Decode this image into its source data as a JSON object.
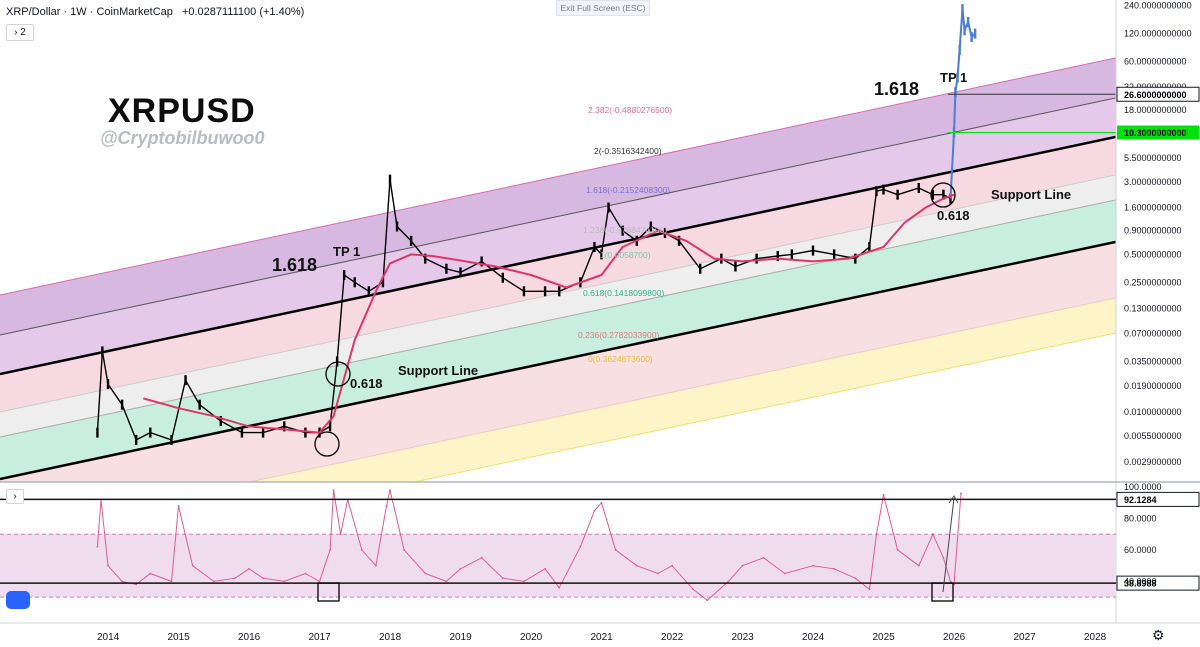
{
  "header": {
    "symbol": "XRP/Dollar · 1W · CoinMarketCap",
    "change": "+0.0287111100 (+1.40%)",
    "collapse_label": "› 2",
    "rsi_toggle": "›",
    "exit_fullscreen": "Exit Full Screen (ESC)"
  },
  "watermark": {
    "title": "XRPUSD",
    "handle": "@Cryptobilbuwoo0"
  },
  "colors": {
    "candle": "#000000",
    "ma": "#e0356b",
    "rsi": "#e05a95",
    "recent_candle": "#4a7fd4",
    "green_tag": "#00e00a",
    "price_tag": "#ffffff"
  },
  "chart_data": [
    {
      "type": "line",
      "pane": "price",
      "scale": "log",
      "x_labels": [
        "2014",
        "2015",
        "2016",
        "2017",
        "2018",
        "2019",
        "2020",
        "2021",
        "2022",
        "2023",
        "2024",
        "2025",
        "2026",
        "2027",
        "2028"
      ],
      "y_ticks": [
        "240.0000000000",
        "120.0000000000",
        "60.0000000000",
        "32.0000000000",
        "18.0000000000",
        "5.5000000000",
        "3.0000000000",
        "1.6000000000",
        "0.9000000000",
        "0.5000000000",
        "0.2500000000",
        "0.1300000000",
        "0.0700000000",
        "0.0350000000",
        "0.0190000000",
        "0.0100000000",
        "0.0055000000",
        "0.0029000000"
      ],
      "ylim": [
        0.0022,
        250
      ],
      "price_tags": [
        {
          "label": "26.6000000000",
          "value": 26.6,
          "style": "white"
        },
        {
          "label": "10.3000000000",
          "value": 10.3,
          "style": "green"
        }
      ],
      "fib_labels": [
        {
          "text": "2.382(-0.4880276500)",
          "color": "#e06f8f"
        },
        {
          "text": "2(-0.3516342400)",
          "color": "#333333"
        },
        {
          "text": "1.618(-0.2152408300)",
          "color": "#7a6fd0"
        },
        {
          "text": "1.236(-0.0788474100)",
          "color": "#bbbbbb"
        },
        {
          "text": "1(0.0058700)",
          "color": "#7dc9a8"
        },
        {
          "text": "0.618(0.1418099800)",
          "color": "#2bb58a"
        },
        {
          "text": "0.236(0.2782033900)",
          "color": "#e07a7a"
        },
        {
          "text": "0(0.3624673600)",
          "color": "#e0c040"
        }
      ],
      "annotations": [
        {
          "text": "1.618"
        },
        {
          "text": "TP 1"
        },
        {
          "text": "Support Line"
        },
        {
          "text": "0.618"
        },
        {
          "text": "1.618"
        },
        {
          "text": "TP 1"
        },
        {
          "text": "Support Line"
        },
        {
          "text": "0.618"
        }
      ],
      "price_series": {
        "name": "",
        "x": [
          2013.85,
          2013.92,
          2014.0,
          2014.2,
          2014.4,
          2014.6,
          2014.9,
          2015.1,
          2015.3,
          2015.6,
          2015.9,
          2016.2,
          2016.5,
          2016.8,
          2017.0,
          2017.15,
          2017.25,
          2017.35,
          2017.5,
          2017.7,
          2017.9,
          2018.0,
          2018.1,
          2018.3,
          2018.5,
          2018.8,
          2019.0,
          2019.3,
          2019.6,
          2019.9,
          2020.2,
          2020.4,
          2020.7,
          2020.9,
          2021.0,
          2021.1,
          2021.3,
          2021.5,
          2021.7,
          2021.9,
          2022.1,
          2022.4,
          2022.7,
          2022.9,
          2023.2,
          2023.5,
          2023.7,
          2024.0,
          2024.3,
          2024.6,
          2024.8,
          2024.9,
          2025.0,
          2025.2,
          2025.5,
          2025.7,
          2025.85,
          2025.95,
          2026.0,
          2026.02,
          2026.05,
          2026.08,
          2026.12,
          2026.15,
          2026.2,
          2026.25,
          2026.3
        ],
        "y": [
          0.006,
          0.045,
          0.02,
          0.012,
          0.005,
          0.006,
          0.005,
          0.022,
          0.012,
          0.008,
          0.006,
          0.006,
          0.007,
          0.006,
          0.006,
          0.007,
          0.035,
          0.3,
          0.25,
          0.2,
          0.25,
          3.2,
          1.0,
          0.7,
          0.45,
          0.35,
          0.32,
          0.42,
          0.28,
          0.2,
          0.2,
          0.2,
          0.25,
          0.6,
          0.5,
          1.6,
          0.9,
          0.7,
          1.0,
          0.85,
          0.7,
          0.35,
          0.45,
          0.37,
          0.45,
          0.48,
          0.5,
          0.55,
          0.5,
          0.45,
          0.6,
          2.4,
          2.5,
          2.2,
          2.6,
          2.2,
          2.2,
          2.0,
          10.3,
          28,
          40,
          80,
          220,
          130,
          160,
          110,
          120
        ]
      },
      "ma_series": {
        "name": "",
        "x": [
          2014.5,
          2015.0,
          2015.5,
          2016.0,
          2016.5,
          2017.0,
          2017.2,
          2017.5,
          2017.8,
          2018.0,
          2018.3,
          2018.6,
          2019.0,
          2019.5,
          2020.0,
          2020.5,
          2021.0,
          2021.3,
          2021.8,
          2022.2,
          2022.6,
          2023.0,
          2023.5,
          2024.0,
          2024.5,
          2025.0,
          2025.3,
          2025.6,
          2025.85,
          2026.0
        ],
        "y": [
          0.014,
          0.011,
          0.009,
          0.007,
          0.0065,
          0.006,
          0.009,
          0.06,
          0.2,
          0.4,
          0.5,
          0.48,
          0.43,
          0.37,
          0.3,
          0.22,
          0.3,
          0.6,
          0.9,
          0.7,
          0.45,
          0.42,
          0.45,
          0.42,
          0.45,
          0.6,
          1.1,
          1.6,
          2.0,
          2.2
        ]
      }
    },
    {
      "type": "line",
      "pane": "rsi",
      "y_ticks": [
        "100.0000",
        "80.0000",
        "60.0000",
        "40.0000"
      ],
      "ylim": [
        18,
        100
      ],
      "value_tags": [
        {
          "label": "92.1284",
          "value": 92.1284
        },
        {
          "label": "38.8988",
          "value": 38.8988
        }
      ],
      "rsi_series": {
        "name": "",
        "x": [
          2013.85,
          2013.9,
          2014.0,
          2014.2,
          2014.4,
          2014.6,
          2014.9,
          2015.0,
          2015.2,
          2015.5,
          2015.8,
          2016.0,
          2016.2,
          2016.5,
          2016.8,
          2017.0,
          2017.15,
          2017.2,
          2017.3,
          2017.4,
          2017.6,
          2017.8,
          2017.95,
          2018.0,
          2018.2,
          2018.5,
          2018.8,
          2019.0,
          2019.3,
          2019.6,
          2019.9,
          2020.2,
          2020.4,
          2020.7,
          2020.9,
          2021.0,
          2021.2,
          2021.5,
          2021.8,
          2022.0,
          2022.3,
          2022.5,
          2022.8,
          2023.0,
          2023.3,
          2023.6,
          2024.0,
          2024.3,
          2024.6,
          2024.8,
          2024.9,
          2025.0,
          2025.2,
          2025.5,
          2025.7,
          2025.85,
          2025.95,
          2026.0,
          2026.1
        ],
        "y": [
          62,
          92,
          50,
          40,
          38,
          45,
          40,
          88,
          50,
          40,
          42,
          48,
          42,
          40,
          45,
          40,
          60,
          98,
          70,
          92,
          60,
          50,
          88,
          98,
          60,
          45,
          40,
          48,
          55,
          42,
          40,
          48,
          36,
          62,
          85,
          90,
          60,
          50,
          45,
          50,
          35,
          28,
          40,
          50,
          55,
          45,
          50,
          48,
          42,
          35,
          70,
          95,
          60,
          50,
          70,
          55,
          40,
          38,
          96
        ]
      }
    }
  ],
  "axis": {
    "settings_icon": "gear-icon"
  }
}
